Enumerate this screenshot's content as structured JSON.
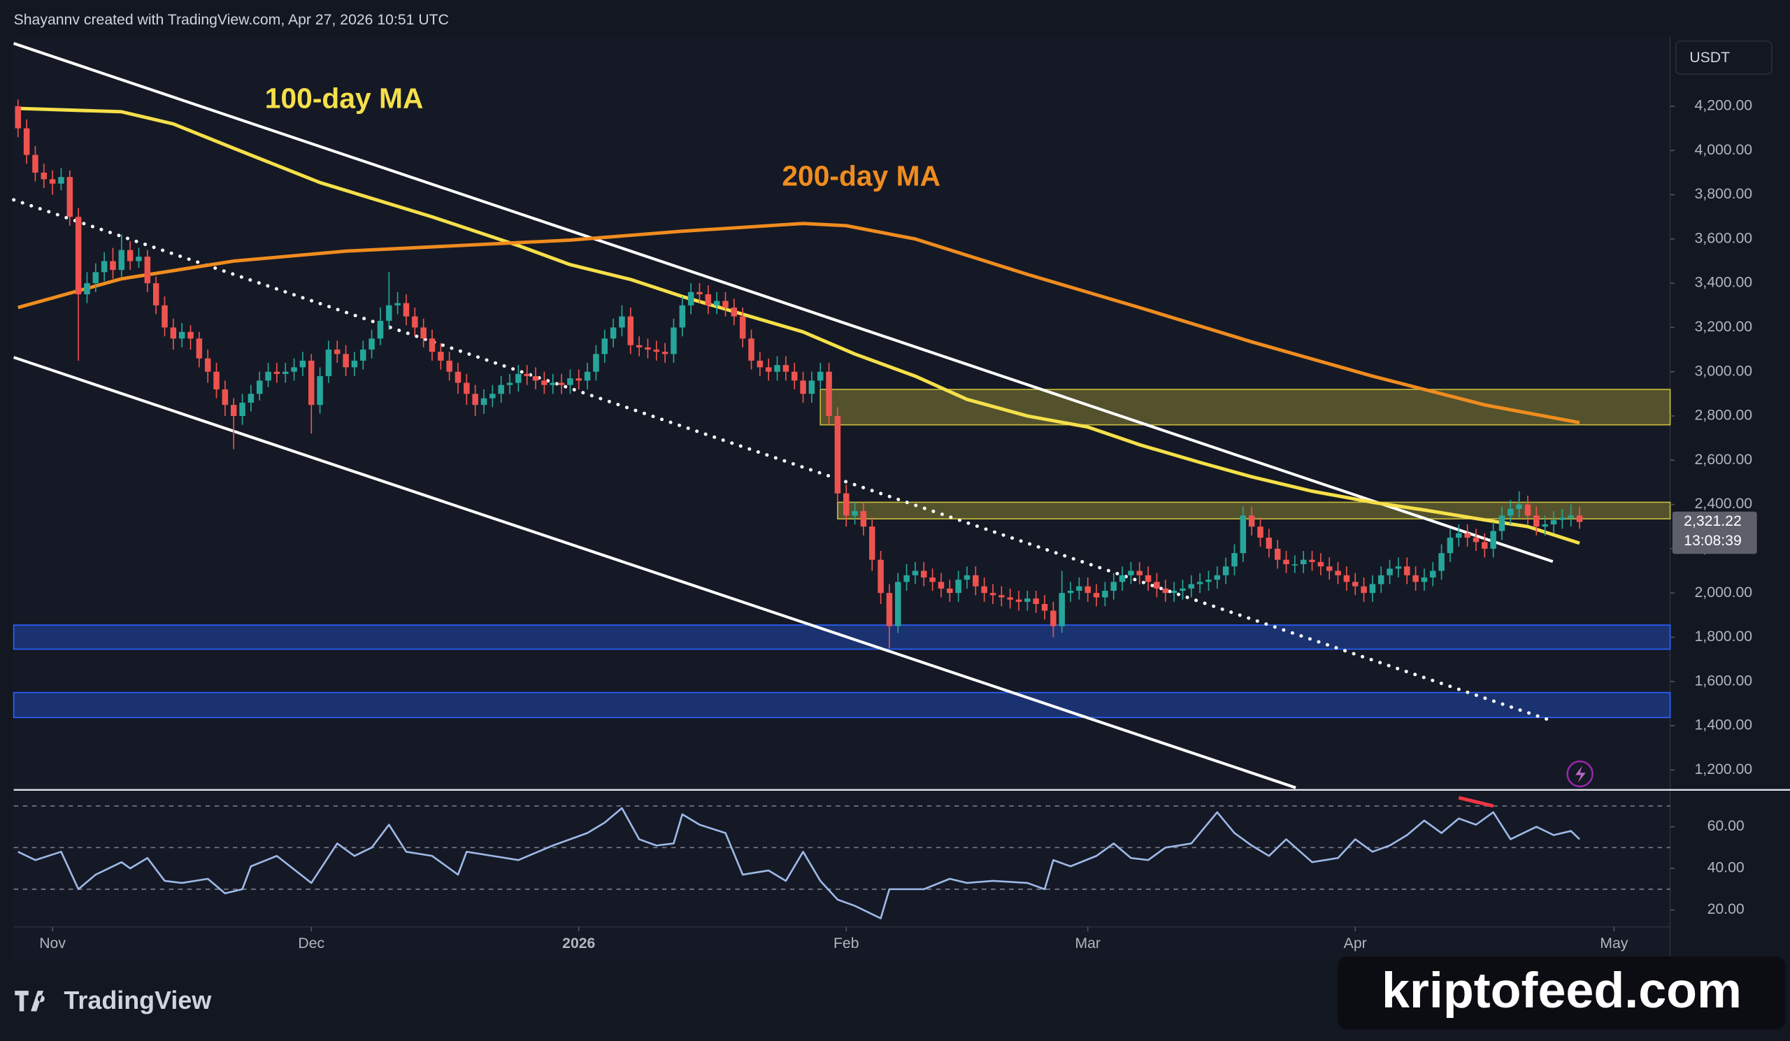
{
  "chart_data": {
    "type": "candlestick",
    "header": "Shayannv created with TradingView.com, Apr 27, 2026 10:51 UTC",
    "currency": "USDT",
    "brand": "TradingView",
    "watermark": "kriptofeed.com",
    "up_color": "#26a69a",
    "down_color": "#ef5350",
    "xlim": [
      -4.5,
      187.5
    ],
    "xticks": [
      {
        "value": 0,
        "label": "Nov"
      },
      {
        "value": 30,
        "label": "Dec"
      },
      {
        "value": 61,
        "label": "2026"
      },
      {
        "value": 92,
        "label": "Feb"
      },
      {
        "value": 120,
        "label": "Mar"
      },
      {
        "value": 151,
        "label": "Apr"
      },
      {
        "value": 181,
        "label": "May"
      }
    ],
    "ylim": [
      1110,
      4515
    ],
    "yticks": [
      {
        "value": 1200,
        "label": "1,200.00"
      },
      {
        "value": 1400,
        "label": "1,400.00"
      },
      {
        "value": 1600,
        "label": "1,600.00"
      },
      {
        "value": 1800,
        "label": "1,800.00"
      },
      {
        "value": 2000,
        "label": "2,000.00"
      },
      {
        "value": 2200,
        "label": "2,200.00"
      },
      {
        "value": 2400,
        "label": "2,400.00"
      },
      {
        "value": 2600,
        "label": "2,600.00"
      },
      {
        "value": 2800,
        "label": "2,800.00"
      },
      {
        "value": 3000,
        "label": "3,000.00"
      },
      {
        "value": 3200,
        "label": "3,200.00"
      },
      {
        "value": 3400,
        "label": "3,400.00"
      },
      {
        "value": 3600,
        "label": "3,600.00"
      },
      {
        "value": 3800,
        "label": "3,800.00"
      },
      {
        "value": 4000,
        "label": "4,000.00"
      },
      {
        "value": 4200,
        "label": "4,200.00"
      }
    ],
    "last_price": {
      "value": 2321.22,
      "label": "2,321.22"
    },
    "countdown": "13:08:39",
    "x": [
      -4,
      -3,
      -2,
      -1,
      0,
      1,
      2,
      3,
      4,
      5,
      6,
      7,
      8,
      9,
      10,
      11,
      12,
      13,
      14,
      15,
      16,
      17,
      18,
      19,
      20,
      21,
      22,
      23,
      24,
      25,
      26,
      27,
      28,
      29,
      30,
      31,
      32,
      33,
      34,
      35,
      36,
      37,
      38,
      39,
      40,
      41,
      42,
      43,
      44,
      45,
      46,
      47,
      48,
      49,
      50,
      51,
      52,
      53,
      54,
      55,
      56,
      57,
      58,
      59,
      60,
      61,
      62,
      63,
      64,
      65,
      66,
      67,
      68,
      69,
      70,
      71,
      72,
      73,
      74,
      75,
      76,
      77,
      78,
      79,
      80,
      81,
      82,
      83,
      84,
      85,
      86,
      87,
      88,
      89,
      90,
      91,
      92,
      93,
      94,
      95,
      96,
      97,
      98,
      99,
      100,
      101,
      102,
      103,
      104,
      105,
      106,
      107,
      108,
      109,
      110,
      111,
      112,
      113,
      114,
      115,
      116,
      117,
      118,
      119,
      120,
      121,
      122,
      123,
      124,
      125,
      126,
      127,
      128,
      129,
      130,
      131,
      132,
      133,
      134,
      135,
      136,
      137,
      138,
      139,
      140,
      141,
      142,
      143,
      144,
      145,
      146,
      147,
      148,
      149,
      150,
      151,
      152,
      153,
      154,
      155,
      156,
      157,
      158,
      159,
      160,
      161,
      162,
      163,
      164,
      165,
      166,
      167,
      168,
      169,
      170,
      171,
      172,
      173,
      174,
      175,
      176,
      177
    ],
    "open": [
      4200,
      4100,
      3980,
      3900,
      3870,
      3850,
      3880,
      3700,
      3350,
      3400,
      3450,
      3500,
      3460,
      3550,
      3500,
      3520,
      3400,
      3300,
      3200,
      3150,
      3180,
      3150,
      3060,
      3000,
      2920,
      2850,
      2800,
      2860,
      2900,
      2960,
      3000,
      2990,
      3000,
      3020,
      3050,
      2850,
      2980,
      3100,
      3080,
      3020,
      3050,
      3100,
      3150,
      3230,
      3300,
      3310,
      3250,
      3200,
      3150,
      3090,
      3050,
      3000,
      2950,
      2900,
      2850,
      2880,
      2900,
      2940,
      2950,
      2990,
      2980,
      2960,
      2940,
      2950,
      2940,
      2970,
      2960,
      3000,
      3080,
      3150,
      3200,
      3250,
      3120,
      3110,
      3100,
      3090,
      3080,
      3200,
      3300,
      3360,
      3350,
      3300,
      3320,
      3290,
      3250,
      3150,
      3050,
      3020,
      3000,
      3030,
      3000,
      2960,
      2900,
      2960,
      3000,
      2800,
      2450,
      2350,
      2370,
      2300,
      2150,
      2000,
      1850,
      2050,
      2080,
      2100,
      2070,
      2050,
      2020,
      2000,
      2060,
      2080,
      2030,
      2000,
      1990,
      1980,
      1970,
      1960,
      1975,
      1950,
      1920,
      1850,
      2000,
      2010,
      2030,
      2000,
      1980,
      2010,
      2050,
      2080,
      2100,
      2080,
      2050,
      2020,
      2000,
      2010,
      2020,
      2040,
      2050,
      2060,
      2080,
      2120,
      2180,
      2350,
      2300,
      2250,
      2200,
      2150,
      2130,
      2130,
      2150,
      2140,
      2120,
      2100,
      2080,
      2050,
      2030,
      2000,
      2040,
      2080,
      2110,
      2120,
      2080,
      2050,
      2070,
      2100,
      2180,
      2250,
      2270,
      2250,
      2230,
      2200,
      2280,
      2350,
      2380,
      2400,
      2350,
      2300,
      2310,
      2330,
      2340,
      2350
    ],
    "high": [
      4230,
      4140,
      4020,
      3940,
      3910,
      3920,
      3910,
      3740,
      3450,
      3490,
      3540,
      3560,
      3620,
      3590,
      3560,
      3550,
      3430,
      3340,
      3240,
      3220,
      3210,
      3180,
      3100,
      3040,
      2960,
      2880,
      2900,
      2940,
      3000,
      3040,
      3040,
      3040,
      3060,
      3090,
      3080,
      3020,
      3140,
      3140,
      3120,
      3090,
      3140,
      3190,
      3290,
      3450,
      3360,
      3350,
      3290,
      3240,
      3190,
      3130,
      3090,
      3040,
      2990,
      2940,
      2920,
      2940,
      2980,
      2990,
      3030,
      3030,
      3020,
      3000,
      2990,
      2990,
      3010,
      3010,
      3040,
      3120,
      3190,
      3240,
      3300,
      3290,
      3160,
      3150,
      3140,
      3130,
      3240,
      3340,
      3400,
      3400,
      3390,
      3360,
      3360,
      3330,
      3290,
      3190,
      3090,
      3060,
      3070,
      3070,
      3040,
      3000,
      3000,
      3040,
      3040,
      2840,
      2490,
      2410,
      2410,
      2340,
      2190,
      2040,
      2090,
      2130,
      2140,
      2140,
      2110,
      2090,
      2060,
      2100,
      2120,
      2120,
      2070,
      2040,
      2030,
      2020,
      2010,
      2010,
      2010,
      1990,
      1960,
      2100,
      2050,
      2070,
      2070,
      2040,
      2050,
      2090,
      2120,
      2140,
      2140,
      2120,
      2090,
      2060,
      2050,
      2060,
      2080,
      2090,
      2100,
      2120,
      2160,
      2220,
      2390,
      2390,
      2340,
      2290,
      2240,
      2190,
      2170,
      2190,
      2190,
      2180,
      2160,
      2140,
      2120,
      2090,
      2070,
      2080,
      2120,
      2150,
      2160,
      2160,
      2120,
      2110,
      2140,
      2220,
      2290,
      2310,
      2310,
      2290,
      2270,
      2320,
      2390,
      2420,
      2460,
      2440,
      2390,
      2350,
      2370,
      2380,
      2400,
      2390
    ],
    "low": [
      4060,
      3940,
      3860,
      3830,
      3800,
      3820,
      3660,
      3050,
      3310,
      3360,
      3410,
      3420,
      3430,
      3460,
      3470,
      3360,
      3260,
      3160,
      3100,
      3110,
      3100,
      3020,
      2950,
      2880,
      2800,
      2650,
      2760,
      2820,
      2870,
      2930,
      2950,
      2950,
      2960,
      2980,
      2720,
      2810,
      2950,
      3040,
      2980,
      2980,
      3010,
      3060,
      3120,
      3190,
      3260,
      3210,
      3160,
      3110,
      3050,
      3010,
      2960,
      2900,
      2850,
      2800,
      2810,
      2840,
      2860,
      2900,
      2910,
      2940,
      2920,
      2900,
      2900,
      2900,
      2900,
      2920,
      2920,
      2960,
      3040,
      3110,
      3160,
      3080,
      3070,
      3060,
      3050,
      3040,
      3040,
      3160,
      3260,
      3310,
      3260,
      3260,
      3250,
      3210,
      3110,
      3010,
      2980,
      2960,
      2960,
      2960,
      2920,
      2860,
      2860,
      2920,
      2760,
      2410,
      2300,
      2310,
      2260,
      2100,
      1950,
      1750,
      1820,
      2010,
      2040,
      2030,
      2010,
      1980,
      1960,
      1960,
      2020,
      1990,
      1960,
      1950,
      1940,
      1930,
      1920,
      1920,
      1910,
      1880,
      1800,
      1820,
      1960,
      1970,
      1960,
      1940,
      1940,
      1970,
      2010,
      2040,
      2040,
      2010,
      1980,
      1960,
      1960,
      1970,
      1980,
      2000,
      2010,
      2020,
      2040,
      2080,
      2140,
      2260,
      2210,
      2160,
      2110,
      2090,
      2090,
      2090,
      2100,
      2080,
      2060,
      2040,
      2010,
      1990,
      1960,
      1960,
      2000,
      2040,
      2070,
      2040,
      2010,
      2010,
      2030,
      2060,
      2140,
      2210,
      2210,
      2190,
      2160,
      2160,
      2240,
      2310,
      2340,
      2310,
      2260,
      2260,
      2270,
      2290,
      2300,
      2290
    ],
    "close": [
      4100,
      3980,
      3900,
      3870,
      3850,
      3880,
      3700,
      3350,
      3400,
      3450,
      3500,
      3460,
      3550,
      3500,
      3520,
      3400,
      3300,
      3200,
      3150,
      3180,
      3150,
      3060,
      3000,
      2920,
      2850,
      2800,
      2860,
      2900,
      2960,
      3000,
      2990,
      3000,
      3020,
      3050,
      2850,
      2980,
      3100,
      3080,
      3020,
      3050,
      3100,
      3150,
      3230,
      3300,
      3310,
      3250,
      3200,
      3150,
      3090,
      3050,
      3000,
      2950,
      2900,
      2850,
      2880,
      2900,
      2940,
      2950,
      2990,
      2980,
      2960,
      2940,
      2950,
      2940,
      2970,
      2960,
      3000,
      3080,
      3150,
      3200,
      3250,
      3120,
      3110,
      3100,
      3090,
      3080,
      3200,
      3300,
      3360,
      3350,
      3300,
      3320,
      3290,
      3250,
      3150,
      3050,
      3020,
      3000,
      3030,
      3000,
      2960,
      2900,
      2960,
      3000,
      2800,
      2450,
      2350,
      2370,
      2300,
      2150,
      2000,
      1850,
      2050,
      2080,
      2100,
      2070,
      2050,
      2020,
      2000,
      2060,
      2080,
      2030,
      2000,
      1990,
      1980,
      1970,
      1960,
      1975,
      1950,
      1920,
      1850,
      2000,
      2010,
      2030,
      2000,
      1980,
      2010,
      2050,
      2080,
      2100,
      2080,
      2050,
      2020,
      2000,
      2010,
      2020,
      2040,
      2050,
      2060,
      2080,
      2120,
      2180,
      2350,
      2300,
      2250,
      2200,
      2150,
      2130,
      2130,
      2150,
      2140,
      2120,
      2100,
      2080,
      2050,
      2030,
      2000,
      2040,
      2080,
      2110,
      2120,
      2080,
      2050,
      2070,
      2100,
      2180,
      2250,
      2270,
      2250,
      2230,
      2200,
      2280,
      2350,
      2380,
      2400,
      2350,
      2300,
      2310,
      2330,
      2340,
      2350,
      2321.22
    ],
    "lines": [
      {
        "name": "100-day MA",
        "color": "#f5e04a",
        "x": [
          -4,
          8,
          14,
          21,
          31,
          44,
          54,
          60,
          67,
          73,
          80,
          87,
          93,
          100,
          106,
          113,
          120,
          126,
          133,
          139,
          146,
          153,
          159,
          166,
          171,
          177
        ],
        "values": [
          4190,
          4175,
          4120,
          4010,
          3855,
          3700,
          3570,
          3484,
          3417,
          3340,
          3260,
          3180,
          3080,
          2980,
          2875,
          2800,
          2750,
          2670,
          2590,
          2525,
          2460,
          2410,
          2375,
          2330,
          2300,
          2225
        ]
      },
      {
        "name": "200-day MA",
        "color": "#f08c1f",
        "x": [
          -4,
          8,
          21,
          34,
          47,
          60,
          73,
          87,
          92,
          100,
          113,
          126,
          139,
          153,
          166,
          177
        ],
        "values": [
          3290,
          3420,
          3500,
          3545,
          3570,
          3595,
          3635,
          3670,
          3660,
          3600,
          3440,
          3290,
          3135,
          2980,
          2850,
          2770
        ]
      }
    ],
    "trendlines": [
      {
        "x": [
          -4.5,
          173.9
        ],
        "values": [
          4484,
          2142
        ],
        "color": "#ffffff",
        "dotted": false
      },
      {
        "x": [
          -4.5,
          144.1
        ],
        "values": [
          3065,
          1120
        ],
        "color": "#ffffff",
        "dotted": false
      },
      {
        "x": [
          -4.5,
          173.2
        ],
        "values": [
          3777,
          1430
        ],
        "color": "#ffffff",
        "dotted": true
      }
    ],
    "zones": [
      {
        "x": [
          89,
          187.5
        ],
        "range": [
          2760,
          2920
        ],
        "color": "#c8bc3c"
      },
      {
        "x": [
          91,
          187.5
        ],
        "range": [
          2335,
          2410
        ],
        "color": "#c8bc3c"
      },
      {
        "x": [
          -4.5,
          187.5
        ],
        "range": [
          1746,
          1855
        ],
        "color": "#2962ff"
      },
      {
        "x": [
          -4.5,
          187.5
        ],
        "range": [
          1437,
          1550
        ],
        "color": "#2962ff"
      }
    ],
    "indicator": {
      "type": "line",
      "color": "#9db9e8",
      "ylim": [
        13,
        75
      ],
      "yticks": [
        {
          "value": 20,
          "label": "20.00"
        },
        {
          "value": 40,
          "label": "40.00"
        },
        {
          "value": 60,
          "label": "60.00"
        }
      ],
      "levels": [
        70,
        50,
        30
      ],
      "x": [
        -4,
        -2,
        1,
        3,
        5,
        8,
        9,
        11,
        13,
        15,
        18,
        20,
        22,
        23,
        26,
        30,
        33,
        35,
        37,
        39,
        41,
        44,
        47,
        48,
        51,
        54,
        58,
        62,
        64,
        66,
        68,
        70,
        72,
        73,
        75,
        78,
        80,
        83,
        85,
        87,
        89,
        91,
        93,
        96,
        97,
        101,
        104,
        106,
        109,
        113,
        115,
        116,
        118,
        121,
        123,
        125,
        127,
        129,
        132,
        135,
        137,
        139,
        141,
        143,
        146,
        149,
        151,
        153,
        155,
        157,
        159,
        161,
        163,
        165,
        167,
        169,
        172,
        174,
        176,
        177
      ],
      "values": [
        48,
        44,
        48,
        30,
        37,
        43,
        40,
        45,
        34,
        33,
        35,
        28,
        30,
        41,
        46,
        33,
        52,
        46,
        50,
        61,
        48,
        46,
        37,
        48,
        46,
        44,
        51,
        57,
        62,
        69,
        54,
        51,
        52,
        66,
        61,
        57,
        37,
        39,
        34,
        48,
        34,
        25,
        22,
        16,
        30,
        30,
        35,
        33,
        34,
        33,
        30,
        44,
        41,
        46,
        52,
        45,
        44,
        50,
        52,
        67,
        57,
        51,
        46,
        54,
        43,
        45,
        54,
        48,
        51,
        56,
        63,
        57,
        64,
        61,
        67,
        54,
        60,
        56,
        58,
        54
      ],
      "divergence": {
        "x": [
          163,
          167
        ],
        "values": [
          74,
          70
        ],
        "color": "#f23645"
      }
    }
  }
}
